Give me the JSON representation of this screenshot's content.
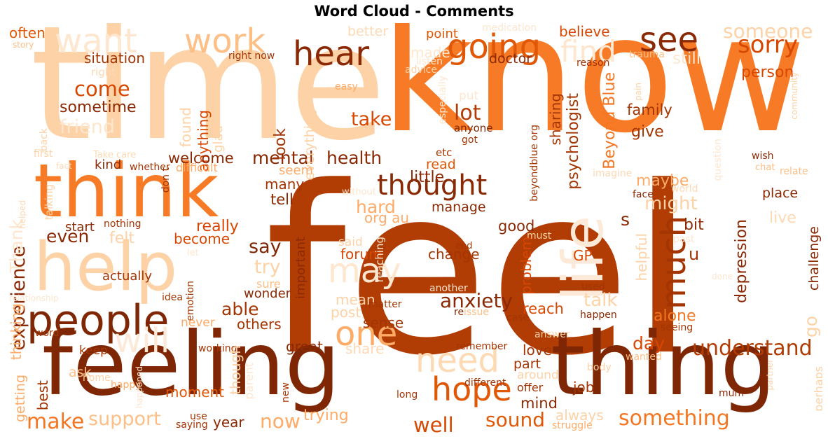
{
  "title": "Word Cloud - Comments",
  "chart_data": {
    "type": "wordcloud",
    "title": "Word Cloud - Comments",
    "words": [
      {
        "text": "feel",
        "c": "#b13c04"
      },
      {
        "text": "know",
        "c": "#f77b26"
      },
      {
        "text": "time",
        "c": "#fdd2a7"
      },
      {
        "text": "feeling",
        "c": "#7f2704"
      },
      {
        "text": "thing",
        "c": "#7f2704"
      },
      {
        "text": "think",
        "c": "#f77b26"
      },
      {
        "text": "help",
        "c": "#fdd2a7"
      },
      {
        "text": "way",
        "c": "#fdd9b4"
      },
      {
        "text": "life",
        "c": "#fde9d8"
      },
      {
        "text": "people",
        "c": "#7f2704"
      },
      {
        "text": "work",
        "c": "#fdbf86"
      },
      {
        "text": "want",
        "c": "#fee6cf"
      },
      {
        "text": "hear",
        "c": "#8a2904"
      },
      {
        "text": "going",
        "c": "#e05706"
      },
      {
        "text": "see",
        "c": "#8a2904"
      },
      {
        "text": "find",
        "c": "#fee6cf"
      },
      {
        "text": "someone",
        "c": "#fdd2a7"
      },
      {
        "text": "sorry",
        "c": "#d84701"
      },
      {
        "text": "thought",
        "c": "#8a2904"
      },
      {
        "text": "much",
        "c": "#a33503"
      },
      {
        "text": "may",
        "c": "#fee6cf"
      },
      {
        "text": "one",
        "c": "#fdab67"
      },
      {
        "text": "need",
        "c": "#fdd9b4"
      },
      {
        "text": "will",
        "c": "#fde9d8"
      },
      {
        "text": "hope",
        "c": "#e05706"
      },
      {
        "text": "understand",
        "c": "#b13c04"
      },
      {
        "text": "something",
        "c": "#f57622"
      },
      {
        "text": "support",
        "c": "#fdbf86"
      },
      {
        "text": "make",
        "c": "#f57622"
      },
      {
        "text": "now",
        "c": "#fdab67"
      },
      {
        "text": "well",
        "c": "#d84701"
      },
      {
        "text": "sound",
        "c": "#e05706"
      },
      {
        "text": "anxiety",
        "c": "#8a2904"
      },
      {
        "text": "health",
        "c": "#8a2904"
      },
      {
        "text": "mental",
        "c": "#8a2904"
      },
      {
        "text": "experience",
        "c": "#8a2904"
      },
      {
        "text": "take",
        "c": "#d84701"
      },
      {
        "text": "lot",
        "c": "#b13c04"
      },
      {
        "text": "come",
        "c": "#d84701"
      },
      {
        "text": "sometime",
        "c": "#8a2904"
      },
      {
        "text": "friend",
        "c": "#fee6cf"
      },
      {
        "text": "situation",
        "c": "#a33503"
      },
      {
        "text": "often",
        "c": "#e05706"
      },
      {
        "text": "story",
        "c": "#fdbf86"
      },
      {
        "text": "right",
        "c": "#fdd9b4"
      },
      {
        "text": "back",
        "c": "#fdd2a7"
      },
      {
        "text": "better",
        "c": "#fdd9b4"
      },
      {
        "text": "made",
        "c": "#fee6cf"
      },
      {
        "text": "listen",
        "c": "#fee6cf"
      },
      {
        "text": "point",
        "c": "#e05706"
      },
      {
        "text": "medication",
        "c": "#fee6cf"
      },
      {
        "text": "believe",
        "c": "#d84701"
      },
      {
        "text": "person",
        "c": "#d84701"
      },
      {
        "text": "still",
        "c": "#fee6cf"
      },
      {
        "text": "trauma",
        "c": "#fdbf86"
      },
      {
        "text": "reason",
        "c": "#a33503"
      },
      {
        "text": "doctor",
        "c": "#8a2904"
      },
      {
        "text": "advice",
        "c": "#fdd2a7"
      },
      {
        "text": "especially",
        "c": "#fee6cf"
      },
      {
        "text": "easy",
        "c": "#fdab67"
      },
      {
        "text": "right now",
        "c": "#a33503"
      },
      {
        "text": "anything",
        "c": "#d84701"
      },
      {
        "text": "found",
        "c": "#fdd2a7"
      },
      {
        "text": "glad",
        "c": "#fdd2a7"
      },
      {
        "text": "everything",
        "c": "#fdd2a7"
      },
      {
        "text": "look",
        "c": "#a33503"
      },
      {
        "text": "put",
        "c": "#fee6cf"
      },
      {
        "text": "sharing",
        "c": "#a33503"
      },
      {
        "text": "psychologist",
        "c": "#a33503"
      },
      {
        "text": "Beyond Blue",
        "c": "#f57622"
      },
      {
        "text": "beyondblue org",
        "c": "#a33503"
      },
      {
        "text": "family",
        "c": "#a33503"
      },
      {
        "text": "give",
        "c": "#a33503"
      },
      {
        "text": "anyone",
        "c": "#7f2704"
      },
      {
        "text": "got",
        "c": "#a33503"
      },
      {
        "text": "etc",
        "c": "#a33503"
      },
      {
        "text": "read",
        "c": "#e05706"
      },
      {
        "text": "little",
        "c": "#8a2904"
      },
      {
        "text": "seem",
        "c": "#fdab67"
      },
      {
        "text": "welcome",
        "c": "#8a2904"
      },
      {
        "text": "kind",
        "c": "#8a2904"
      },
      {
        "text": "whether",
        "c": "#a33503"
      },
      {
        "text": "difficult",
        "c": "#fdab67"
      },
      {
        "text": "Take care",
        "c": "#fdd9b4"
      },
      {
        "text": "first",
        "c": "#fdd2a7"
      },
      {
        "text": "fact",
        "c": "#fdd9b4"
      },
      {
        "text": "hard",
        "c": "#fdab67"
      },
      {
        "text": "org au",
        "c": "#fdab67"
      },
      {
        "text": "manage",
        "c": "#8a2904"
      },
      {
        "text": "might",
        "c": "#fdd2a7"
      },
      {
        "text": "maybe",
        "c": "#fdab67"
      },
      {
        "text": "question",
        "c": "#fee6cf"
      },
      {
        "text": "imagine",
        "c": "#fdd9b4"
      },
      {
        "text": "face",
        "c": "#8a2904"
      },
      {
        "text": "world",
        "c": "#fdd9b4"
      },
      {
        "text": "wish",
        "c": "#8a2904"
      },
      {
        "text": "chat",
        "c": "#fdbf86"
      },
      {
        "text": "relate",
        "c": "#fdbf86"
      },
      {
        "text": "place",
        "c": "#8a2904"
      },
      {
        "text": "live",
        "c": "#fdd9b4"
      },
      {
        "text": "bit",
        "c": "#8a2904"
      },
      {
        "text": "past",
        "c": "#fee6cf"
      },
      {
        "text": "community",
        "c": "#fdd2a7"
      },
      {
        "text": "pain",
        "c": "#fdd2a7"
      },
      {
        "text": "depression",
        "c": "#8a2904"
      },
      {
        "text": "challenge",
        "c": "#8a2904"
      },
      {
        "text": "helpful",
        "c": "#fdd2a7"
      },
      {
        "text": "alone",
        "c": "#f57622"
      },
      {
        "text": "day",
        "c": "#d84701"
      },
      {
        "text": "talk",
        "c": "#fdd2a7"
      },
      {
        "text": "u",
        "c": "#a33503"
      },
      {
        "text": "GP",
        "c": "#d84701"
      },
      {
        "text": "must",
        "c": "#fdd2a7"
      },
      {
        "text": "s",
        "c": "#8a2904"
      },
      {
        "text": "good",
        "c": "#8a2904"
      },
      {
        "text": "change",
        "c": "#a33503"
      },
      {
        "text": "problem",
        "c": "#d84701"
      },
      {
        "text": "end",
        "c": "#a33503"
      },
      {
        "text": "forum",
        "c": "#d84701"
      },
      {
        "text": "said",
        "c": "#fdd2a7"
      },
      {
        "text": "reaching",
        "c": "#fee6cf"
      },
      {
        "text": "important",
        "c": "#8a2904"
      },
      {
        "text": "say",
        "c": "#7f2704"
      },
      {
        "text": "try",
        "c": "#fdd2a7"
      },
      {
        "text": "really",
        "c": "#d84701"
      },
      {
        "text": "become",
        "c": "#d84701"
      },
      {
        "text": "sure",
        "c": "#fdbf86"
      },
      {
        "text": "even",
        "c": "#8a2904"
      },
      {
        "text": "felt",
        "c": "#fdd2a7"
      },
      {
        "text": "start",
        "c": "#8a2904"
      },
      {
        "text": "nothing",
        "c": "#a33503"
      },
      {
        "text": "Thank",
        "c": "#fee6cf"
      },
      {
        "text": "talking",
        "c": "#fdd2a7"
      },
      {
        "text": "don t",
        "c": "#a33503"
      },
      {
        "text": "helped",
        "c": "#fdd9b4"
      },
      {
        "text": "without",
        "c": "#fee6cf"
      },
      {
        "text": "many",
        "c": "#a33503"
      },
      {
        "text": "tell",
        "c": "#8a2904"
      },
      {
        "text": "actually",
        "c": "#a33503"
      },
      {
        "text": "let",
        "c": "#fee6cf"
      },
      {
        "text": "idea",
        "c": "#a33503"
      },
      {
        "text": "emotion",
        "c": "#a33503"
      },
      {
        "text": "wonder",
        "c": "#8a2904"
      },
      {
        "text": "relationship",
        "c": "#fee6cf"
      },
      {
        "text": "able",
        "c": "#a33503"
      },
      {
        "text": "mean",
        "c": "#fdd2a7"
      },
      {
        "text": "post",
        "c": "#fdd2a7"
      },
      {
        "text": "sense",
        "c": "#a33503"
      },
      {
        "text": "matter",
        "c": "#a33503"
      },
      {
        "text": "re",
        "c": "#8a2904"
      },
      {
        "text": "issue",
        "c": "#fdbf86"
      },
      {
        "text": "another",
        "c": "#fee6cf"
      },
      {
        "text": "used",
        "c": "#a33503"
      },
      {
        "text": "happen",
        "c": "#8a2904"
      },
      {
        "text": "case",
        "c": "#a33503"
      },
      {
        "text": "seeing",
        "c": "#a33503"
      },
      {
        "text": "reach",
        "c": "#d84701"
      },
      {
        "text": "answer",
        "c": "#fdd2a7"
      },
      {
        "text": "done",
        "c": "#fee6cf"
      },
      {
        "text": "go",
        "c": "#fdd2a7"
      },
      {
        "text": "thinking",
        "c": "#fdab67"
      },
      {
        "text": "word",
        "c": "#a33503"
      },
      {
        "text": "never",
        "c": "#fdab67"
      },
      {
        "text": "others",
        "c": "#a33503"
      },
      {
        "text": "working",
        "c": "#a33503"
      },
      {
        "text": "great",
        "c": "#8a2904"
      },
      {
        "text": "keep",
        "c": "#a33503"
      },
      {
        "text": "share",
        "c": "#fdd9b4"
      },
      {
        "text": "remember",
        "c": "#a33503"
      },
      {
        "text": "love",
        "c": "#a33503"
      },
      {
        "text": "part",
        "c": "#a33503"
      },
      {
        "text": "body",
        "c": "#fdd2a7"
      },
      {
        "text": "wanted",
        "c": "#fdbf86"
      },
      {
        "text": "partner",
        "c": "#fdd2a7"
      },
      {
        "text": "perhaps",
        "c": "#fdd2a7"
      },
      {
        "text": "getting",
        "c": "#fdab67"
      },
      {
        "text": "best",
        "c": "#a33503"
      },
      {
        "text": "ask",
        "c": "#fdbf86"
      },
      {
        "text": "home",
        "c": "#fdd2a7"
      },
      {
        "text": "happy",
        "c": "#fdab67"
      },
      {
        "text": "happened",
        "c": "#fee6cf"
      },
      {
        "text": "moment",
        "c": "#e05706"
      },
      {
        "text": "though",
        "c": "#fdd2a7"
      },
      {
        "text": "parent",
        "c": "#fee6cf"
      },
      {
        "text": "new",
        "c": "#a33503"
      },
      {
        "text": "different",
        "c": "#a33503"
      },
      {
        "text": "long",
        "c": "#a33503"
      },
      {
        "text": "around",
        "c": "#fdd2a7"
      },
      {
        "text": "offer",
        "c": "#a33503"
      },
      {
        "text": "mind",
        "c": "#8a2904"
      },
      {
        "text": "job",
        "c": "#a33503"
      },
      {
        "text": "mum",
        "c": "#8a2904"
      },
      {
        "text": "use",
        "c": "#a33503"
      },
      {
        "text": "saying",
        "c": "#a33503"
      },
      {
        "text": "year",
        "c": "#8a2904"
      },
      {
        "text": "trying",
        "c": "#fdab67"
      },
      {
        "text": "always",
        "c": "#fdd2a7"
      },
      {
        "text": "struggle",
        "c": "#fdab67"
      }
    ]
  }
}
